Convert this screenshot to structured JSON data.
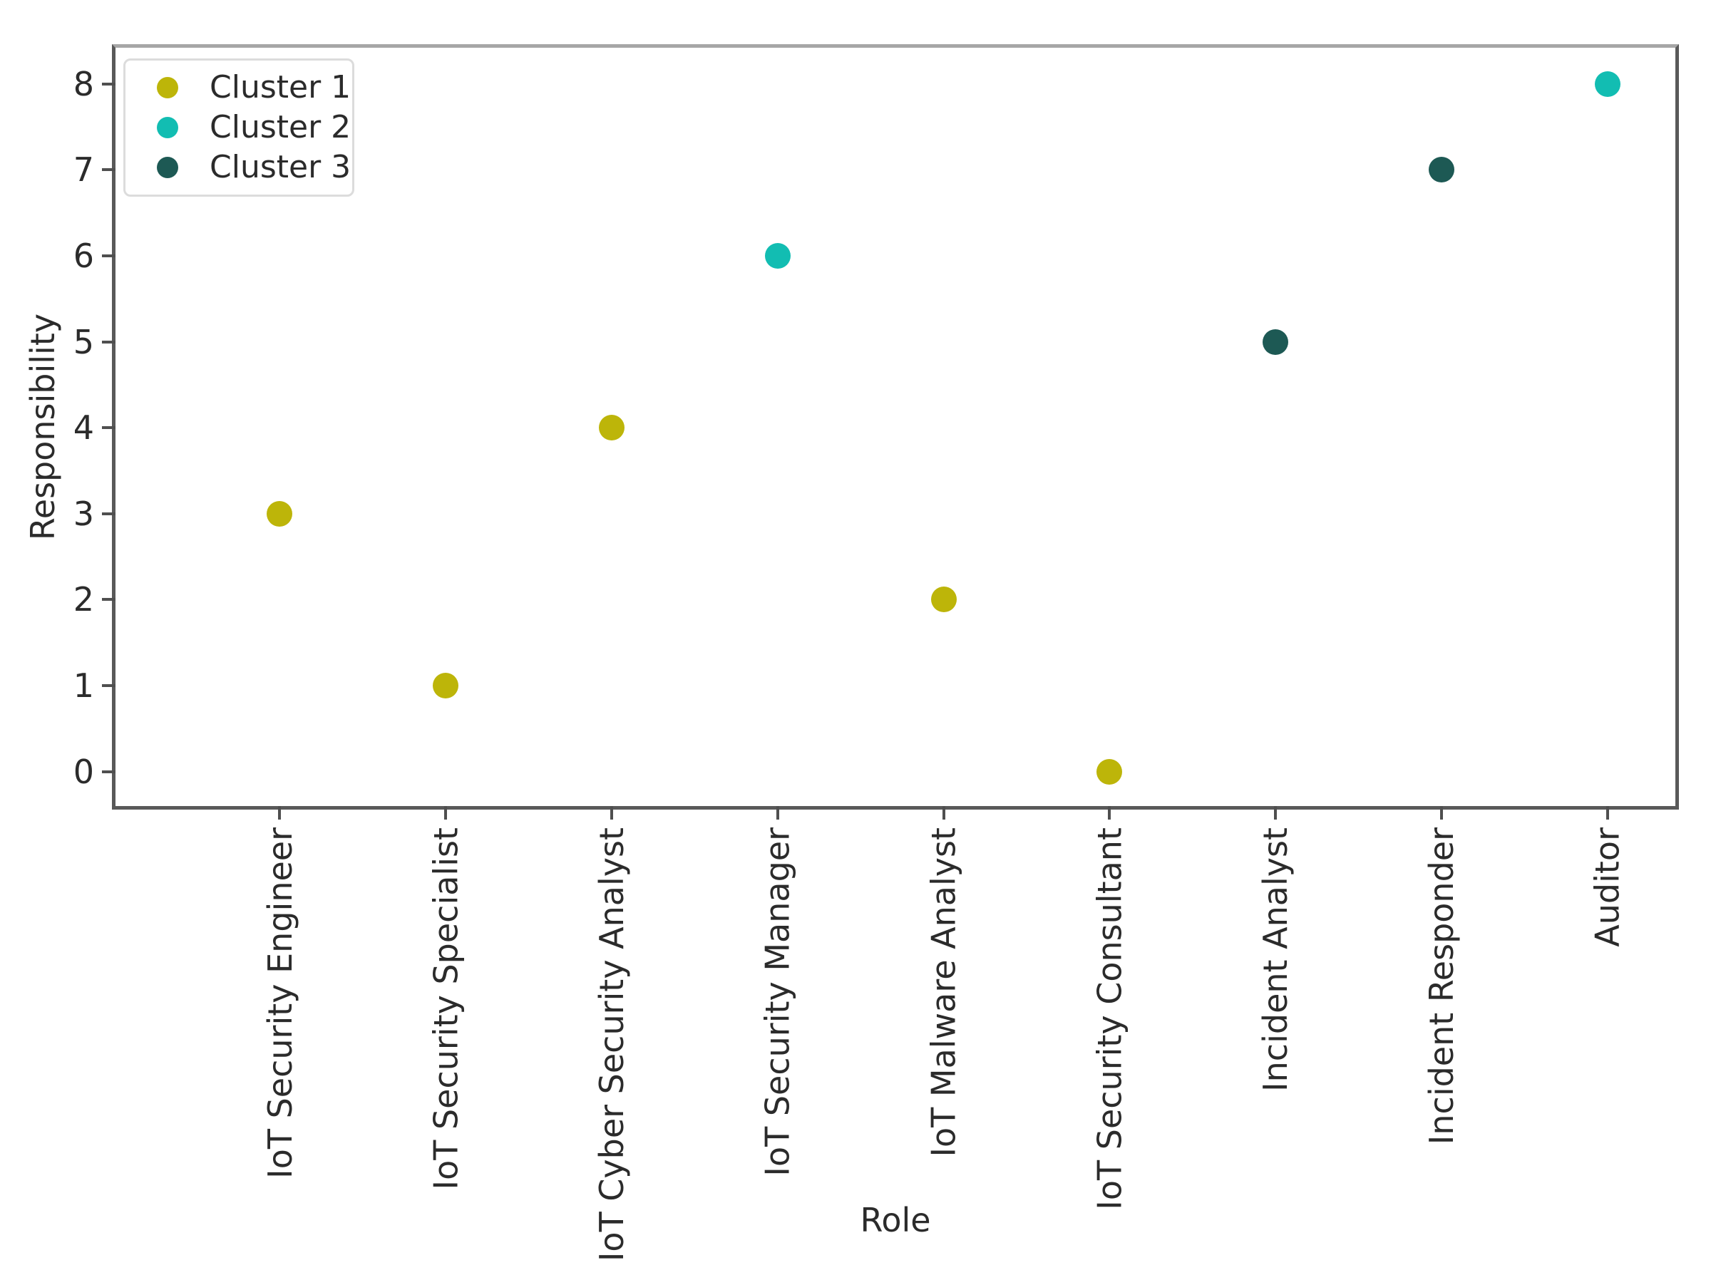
{
  "figure": {
    "colors": {
      "background": "#ffffff",
      "axis": "#595959",
      "axis_top": "#a6a6a6",
      "tick": "#4f4f4f",
      "text": "#2b2b2b",
      "legend_border": "#dcdcdc"
    }
  },
  "chart_data": {
    "type": "scatter",
    "xlabel": "Role",
    "ylabel": "Responsibility",
    "categories": [
      "IoT Security Engineer",
      "IoT Security Specialist",
      "IoT Cyber Security Analyst",
      "IoT Security Manager",
      "IoT Malware Analyst",
      "IoT Security Consultant",
      "Incident Analyst",
      "Incident Responder",
      "Auditor"
    ],
    "series": [
      {
        "name": "Cluster 1",
        "color": "#bdb509",
        "points": [
          {
            "role": "IoT Security Engineer",
            "responsibility": 3
          },
          {
            "role": "IoT Security Specialist",
            "responsibility": 1
          },
          {
            "role": "IoT Cyber Security Analyst",
            "responsibility": 4
          },
          {
            "role": "IoT Malware Analyst",
            "responsibility": 2
          },
          {
            "role": "IoT Security Consultant",
            "responsibility": 0
          }
        ]
      },
      {
        "name": "Cluster 2",
        "color": "#12bdb2",
        "points": [
          {
            "role": "IoT Security Manager",
            "responsibility": 6
          },
          {
            "role": "Auditor",
            "responsibility": 8
          }
        ]
      },
      {
        "name": "Cluster 3",
        "color": "#1d5954",
        "points": [
          {
            "role": "Incident Analyst",
            "responsibility": 5
          },
          {
            "role": "Incident Responder",
            "responsibility": 7
          }
        ]
      }
    ],
    "yticks": [
      0,
      1,
      2,
      3,
      4,
      5,
      6,
      7,
      8
    ],
    "ylim": [
      -0.4,
      8.42
    ],
    "xlim": [
      -0.99,
      8.41
    ],
    "grid": false,
    "legend_position": "upper left"
  }
}
